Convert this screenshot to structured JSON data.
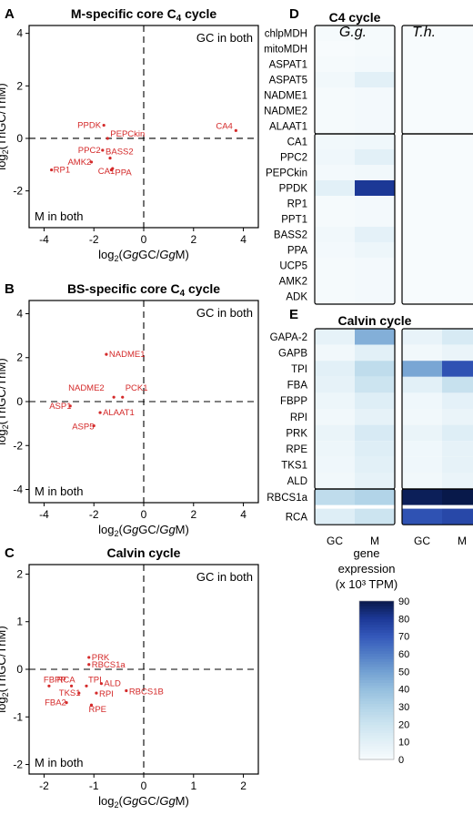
{
  "chart_data": [
    {
      "panel": "A",
      "type": "scatter",
      "title": "M-specific core C4 cycle",
      "xlabel": "log2(GgGC/GgM)",
      "ylabel": "log2(ThGC/ThM)",
      "xlim": [
        -4.6,
        4.6
      ],
      "ylim": [
        -3.4,
        4.3
      ],
      "xticks": [
        "-4",
        "-2",
        "0",
        "2",
        "4"
      ],
      "yticks": [
        "4",
        "2",
        "0",
        "-2"
      ],
      "xtick_values": [
        -4,
        -2,
        0,
        2,
        4
      ],
      "ytick_values": [
        4,
        2,
        0,
        -2
      ],
      "annotations": {
        "top_right": "GC in both",
        "bottom_left": "M in both"
      },
      "points": [
        {
          "label": "PPDK",
          "x": -1.6,
          "y": 0.5
        },
        {
          "label": "PEPCkin",
          "x": -1.45,
          "y": 0.0
        },
        {
          "label": "CA4",
          "x": 3.7,
          "y": 0.3
        },
        {
          "label": "PPC2",
          "x": -1.65,
          "y": -0.45
        },
        {
          "label": "AMK2",
          "x": -2.1,
          "y": -0.9
        },
        {
          "label": "BASS2",
          "x": -1.35,
          "y": -0.75
        },
        {
          "label": "RP1",
          "x": -3.7,
          "y": -1.2
        },
        {
          "label": "CA1",
          "x": -1.25,
          "y": -1.15
        },
        {
          "label": "PPA",
          "x": -1.3,
          "y": -1.2
        }
      ]
    },
    {
      "panel": "B",
      "type": "scatter",
      "title": "BS-specific core C4 cycle",
      "xlabel": "log2(GgGC/GgM)",
      "ylabel": "log2(ThGC/ThM)",
      "xlim": [
        -4.6,
        4.6
      ],
      "ylim": [
        -4.6,
        4.6
      ],
      "xticks": [
        "-4",
        "-2",
        "0",
        "2",
        "4"
      ],
      "yticks": [
        "4",
        "2",
        "0",
        "-2",
        "-4"
      ],
      "xtick_values": [
        -4,
        -2,
        0,
        2,
        4
      ],
      "ytick_values": [
        4,
        2,
        0,
        -2,
        -4
      ],
      "annotations": {
        "top_right": "GC in both",
        "bottom_left": "M in both"
      },
      "points": [
        {
          "label": "NADME1",
          "x": -1.5,
          "y": 2.15
        },
        {
          "label": "NADME2",
          "x": -1.2,
          "y": 0.2
        },
        {
          "label": "PCK1",
          "x": -0.85,
          "y": 0.2
        },
        {
          "label": "ASP1",
          "x": -2.95,
          "y": -0.2
        },
        {
          "label": "ALAAT1",
          "x": -1.75,
          "y": -0.5
        },
        {
          "label": "ASP5",
          "x": -2.0,
          "y": -1.1
        }
      ]
    },
    {
      "panel": "C",
      "type": "scatter",
      "title": "Calvin cycle",
      "xlabel": "log2(GgGC/GgM)",
      "ylabel": "log2(ThGC/ThM)",
      "xlim": [
        -2.3,
        2.3
      ],
      "ylim": [
        -2.2,
        2.2
      ],
      "xticks": [
        "-2",
        "-1",
        "0",
        "1",
        "2"
      ],
      "yticks": [
        "2",
        "1",
        "0",
        "-1",
        "-2"
      ],
      "xtick_values": [
        -2,
        -1,
        0,
        1,
        2
      ],
      "ytick_values": [
        2,
        1,
        0,
        -1,
        -2
      ],
      "annotations": {
        "top_right": "GC in both",
        "bottom_left": "M in both"
      },
      "points": [
        {
          "label": "PRK",
          "x": -1.1,
          "y": 0.25
        },
        {
          "label": "RBCS1a",
          "x": -1.1,
          "y": 0.1
        },
        {
          "label": "FBPP",
          "x": -1.9,
          "y": -0.35
        },
        {
          "label": "RCA",
          "x": -1.45,
          "y": -0.35
        },
        {
          "label": "TPI",
          "x": -1.15,
          "y": -0.35
        },
        {
          "label": "ALD",
          "x": -0.85,
          "y": -0.3
        },
        {
          "label": "TKS1",
          "x": -1.3,
          "y": -0.5
        },
        {
          "label": "RPI",
          "x": -0.95,
          "y": -0.5
        },
        {
          "label": "RBCS1B",
          "x": -0.35,
          "y": -0.45
        },
        {
          "label": "FBA2",
          "x": -1.55,
          "y": -0.7
        },
        {
          "label": "RPE",
          "x": -1.05,
          "y": -0.75
        }
      ]
    },
    {
      "panel": "D",
      "type": "heatmap",
      "title": "C4 cycle",
      "column_groups": [
        "G.g.",
        "T.h."
      ],
      "columns": [
        "GC",
        "M"
      ],
      "rows": [
        "chlpMDH",
        "mitoMDH",
        "ASPAT1",
        "ASPAT5",
        "NADME1",
        "NADME2",
        "ALAAT1",
        "CA1",
        "PPC2",
        "PEPCkin",
        "PPDK",
        "RP1",
        "PPT1",
        "BASS2",
        "PPA",
        "UCP5",
        "AMK2",
        "ADK"
      ],
      "values_Gg": [
        [
          1,
          1
        ],
        [
          0,
          1
        ],
        [
          1,
          2
        ],
        [
          3,
          10
        ],
        [
          1,
          2
        ],
        [
          1,
          2
        ],
        [
          1,
          2
        ],
        [
          3,
          4
        ],
        [
          4,
          10
        ],
        [
          2,
          3
        ],
        [
          10,
          80
        ],
        [
          1,
          2
        ],
        [
          1,
          2
        ],
        [
          3,
          9
        ],
        [
          2,
          5
        ],
        [
          1,
          2
        ],
        [
          1,
          2
        ],
        [
          1,
          2
        ]
      ],
      "values_Th": [
        [
          0,
          0
        ],
        [
          0,
          0
        ],
        [
          0,
          0
        ],
        [
          0,
          0
        ],
        [
          0,
          0
        ],
        [
          0,
          0
        ],
        [
          0,
          0
        ],
        [
          0,
          0
        ],
        [
          0,
          0
        ],
        [
          0,
          0
        ],
        [
          0,
          0
        ],
        [
          0,
          0
        ],
        [
          0,
          0
        ],
        [
          0,
          0
        ],
        [
          0,
          0
        ],
        [
          0,
          0
        ],
        [
          0,
          0
        ],
        [
          0,
          0
        ]
      ],
      "row_split_after": 7
    },
    {
      "panel": "E",
      "type": "heatmap",
      "title": "Calvin cycle",
      "column_groups": [
        "G.g.",
        "T.h."
      ],
      "columns": [
        "GC",
        "M"
      ],
      "rows": [
        "GAPA-2",
        "GAPB",
        "TPI",
        "FBA",
        "FBPP",
        "RPI",
        "PRK",
        "RPE",
        "TKS1",
        "ALD",
        "RBCS1a",
        "RCA"
      ],
      "values_Gg": [
        [
          8,
          45
        ],
        [
          3,
          10
        ],
        [
          10,
          25
        ],
        [
          8,
          20
        ],
        [
          5,
          12
        ],
        [
          3,
          8
        ],
        [
          6,
          15
        ],
        [
          5,
          12
        ],
        [
          4,
          10
        ],
        [
          3,
          8
        ],
        [
          25,
          30
        ],
        [
          12,
          20
        ]
      ],
      "values_Th": [
        [
          7,
          15
        ],
        [
          3,
          6
        ],
        [
          48,
          72
        ],
        [
          10,
          22
        ],
        [
          4,
          9
        ],
        [
          3,
          6
        ],
        [
          6,
          12
        ],
        [
          4,
          8
        ],
        [
          4,
          8
        ],
        [
          3,
          6
        ],
        [
          88,
          90
        ],
        [
          72,
          75
        ]
      ],
      "row_split_after": 10,
      "xlabels": [
        "GC",
        "M",
        "GC",
        "M"
      ]
    }
  ],
  "labels": {
    "panelA": "A",
    "panelB": "B",
    "panelC": "C",
    "panelD": "D",
    "panelE": "E",
    "gg": "G.g.",
    "th": "T.h.",
    "legendTitle1": "gene",
    "legendTitle2": "expression",
    "legendTitle3": "(x 10³ TPM)"
  },
  "legend": {
    "ticks": [
      90,
      80,
      70,
      60,
      50,
      40,
      30,
      20,
      10,
      0
    ],
    "min": 0,
    "max": 90
  },
  "colors": {
    "point": "#d42a2a",
    "heat_low": "#f7fbfd",
    "heat_high": "#08194a"
  }
}
